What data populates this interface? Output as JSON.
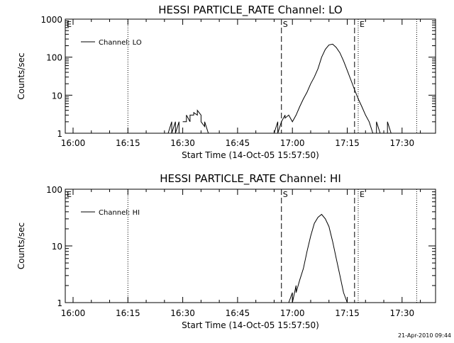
{
  "footer": "21-Apr-2010 09:44",
  "chart_data": [
    {
      "type": "line",
      "title": "HESSI PARTICLE_RATE Channel: LO",
      "xlabel": "Start Time (14-Oct-05 15:57:50)",
      "ylabel": "Counts/sec",
      "yscale": "log",
      "ylim": [
        1,
        1000
      ],
      "xlim_minutes_label": [
        "16:00",
        "17:38"
      ],
      "x_tick_labels": [
        "16:00",
        "16:15",
        "16:30",
        "16:45",
        "17:00",
        "17:15",
        "17:30"
      ],
      "y_tick_labels": [
        "1",
        "10",
        "100",
        "1000"
      ],
      "legend": "Channel: LO",
      "vlines": [
        {
          "time": "16:15",
          "style": "dotted",
          "label": ""
        },
        {
          "time": "16:57",
          "style": "dashed",
          "label": "S"
        },
        {
          "time": "17:17",
          "style": "dashed",
          "label": ""
        },
        {
          "time": "17:18",
          "style": "dotted",
          "label": "E"
        },
        {
          "time": "17:34",
          "style": "dotted",
          "label": ""
        }
      ],
      "edge_label_left": "E",
      "series": [
        {
          "name": "Channel: LO",
          "segments": [
            {
              "x": [
                "16:26",
                "16:27",
                "16:27",
                "16:28",
                "16:28",
                "16:29",
                "16:29"
              ],
              "y": [
                1,
                2,
                1,
                2,
                1,
                2,
                1
              ]
            },
            {
              "x": [
                "16:30",
                "16:31",
                "16:31",
                "16:32",
                "16:32",
                "16:33",
                "16:33",
                "16:34",
                "16:34",
                "16:35",
                "16:35",
                "16:36",
                "16:36",
                "16:37"
              ],
              "y": [
                2,
                2,
                3,
                2,
                3,
                3,
                3.5,
                3,
                4,
                3,
                2,
                1.5,
                2,
                1
              ]
            },
            {
              "x": [
                "16:55",
                "16:56",
                "16:56",
                "16:57",
                "16:58",
                "16:58",
                "16:59",
                "17:00",
                "17:01",
                "17:02",
                "17:03",
                "17:04",
                "17:05",
                "17:06",
                "17:07",
                "17:08",
                "17:09",
                "17:10",
                "17:11",
                "17:12",
                "17:13",
                "17:14",
                "17:15",
                "17:16",
                "17:17",
                "17:18",
                "17:19",
                "17:20",
                "17:21",
                "17:22"
              ],
              "y": [
                1,
                2,
                1,
                2,
                3,
                2.5,
                3,
                2,
                3,
                5,
                8,
                12,
                20,
                30,
                50,
                100,
                160,
                210,
                220,
                180,
                130,
                80,
                45,
                25,
                14,
                8,
                5,
                3,
                2,
                1
              ]
            },
            {
              "x": [
                "17:23",
                "17:23",
                "17:24"
              ],
              "y": [
                1,
                2,
                1
              ]
            },
            {
              "x": [
                "17:26",
                "17:26",
                "17:27"
              ],
              "y": [
                1,
                2,
                1
              ]
            }
          ]
        }
      ]
    },
    {
      "type": "line",
      "title": "HESSI PARTICLE_RATE Channel: HI",
      "xlabel": "Start Time (14-Oct-05 15:57:50)",
      "ylabel": "Counts/sec",
      "yscale": "log",
      "ylim": [
        1,
        100
      ],
      "x_tick_labels": [
        "16:00",
        "16:15",
        "16:30",
        "16:45",
        "17:00",
        "17:15",
        "17:30"
      ],
      "y_tick_labels": [
        "1",
        "10",
        "100"
      ],
      "legend": "Channel: HI",
      "vlines": [
        {
          "time": "16:15",
          "style": "dotted",
          "label": ""
        },
        {
          "time": "16:57",
          "style": "dashed",
          "label": "S"
        },
        {
          "time": "17:17",
          "style": "dashed",
          "label": ""
        },
        {
          "time": "17:18",
          "style": "dotted",
          "label": "E"
        },
        {
          "time": "17:34",
          "style": "dotted",
          "label": ""
        }
      ],
      "edge_label_left": "E",
      "series": [
        {
          "name": "Channel: HI",
          "segments": [
            {
              "x": [
                "16:59",
                "17:00",
                "17:00",
                "17:01",
                "17:01",
                "17:02",
                "17:03",
                "17:04",
                "17:05",
                "17:06",
                "17:07",
                "17:08",
                "17:09",
                "17:10",
                "17:11",
                "17:12",
                "17:13",
                "17:14",
                "17:15"
              ],
              "y": [
                1,
                1.5,
                1,
                2,
                1.5,
                2.5,
                4,
                8,
                15,
                25,
                32,
                36,
                30,
                22,
                12,
                6,
                3,
                1.5,
                1
              ]
            }
          ]
        }
      ]
    }
  ]
}
